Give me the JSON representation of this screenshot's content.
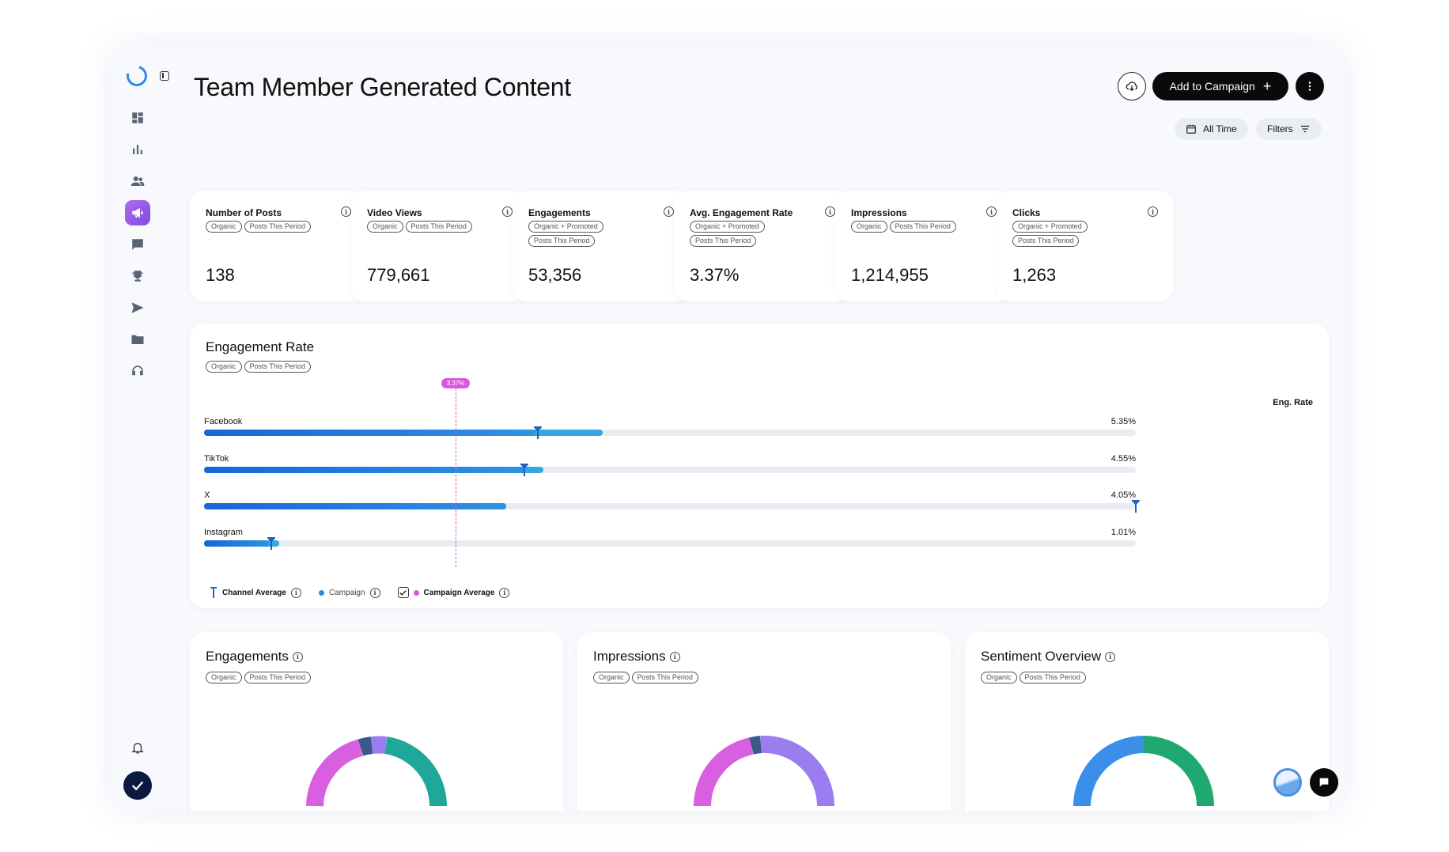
{
  "header": {
    "title": "Team Member Generated Content",
    "add_label": "Add to Campaign",
    "all_time_label": "All Time",
    "filters_label": "Filters"
  },
  "stats": [
    {
      "label": "Number of Posts",
      "tags": [
        "Organic",
        "Posts This Period"
      ],
      "value": "138"
    },
    {
      "label": "Video Views",
      "tags": [
        "Organic",
        "Posts This Period"
      ],
      "value": "779,661"
    },
    {
      "label": "Engagements",
      "tags": [
        "Organic + Promoted",
        "Posts This Period"
      ],
      "value": "53,356"
    },
    {
      "label": "Avg. Engagement Rate",
      "tags": [
        "Organic + Promoted",
        "Posts This Period"
      ],
      "value": "3.37%"
    },
    {
      "label": "Impressions",
      "tags": [
        "Organic",
        "Posts This Period"
      ],
      "value": "1,214,955"
    },
    {
      "label": "Clicks",
      "tags": [
        "Organic + Promoted",
        "Posts This Period"
      ],
      "value": "1,263"
    }
  ],
  "engagement_rate": {
    "title": "Engagement Rate",
    "tags": [
      "Organic",
      "Posts This Period"
    ],
    "column_header": "Eng. Rate",
    "campaign_average_label": "3.37%",
    "legend": {
      "channel_average": "Channel Average",
      "campaign": "Campaign",
      "campaign_average": "Campaign Average"
    },
    "colors": {
      "bar": "#1e7fe0",
      "bar_light": "#38a5e0",
      "track": "#e8ecf3",
      "avg": "#d85ad8"
    }
  },
  "chart_data": {
    "type": "bar",
    "categories": [
      "Facebook",
      "TikTok",
      "X",
      "Instagram"
    ],
    "value_labels": [
      "5.35%",
      "4.55%",
      "4.05%",
      "1.01%"
    ],
    "campaign_fraction": [
      0.356,
      0.345,
      0.324,
      0.07
    ],
    "total_fraction": [
      0.428,
      0.364,
      0.324,
      0.081
    ],
    "channel_average_fraction": [
      0.358,
      0.344,
      1.0,
      0.072
    ],
    "campaign_average_fraction": 0.27
  },
  "bottom_cards": [
    {
      "title": "Engagements",
      "tags": [
        "Organic",
        "Posts This Period"
      ]
    },
    {
      "title": "Impressions",
      "tags": [
        "Organic",
        "Posts This Period"
      ]
    },
    {
      "title": "Sentiment Overview",
      "tags": [
        "Organic",
        "Posts This Period"
      ]
    }
  ],
  "sidebar": {
    "icons": [
      "dashboard-icon",
      "bar-chart-icon",
      "people-icon",
      "megaphone-icon",
      "chat-icon",
      "trophy-icon",
      "send-icon",
      "folder-icon",
      "headphones-icon"
    ],
    "active_index": 3
  }
}
